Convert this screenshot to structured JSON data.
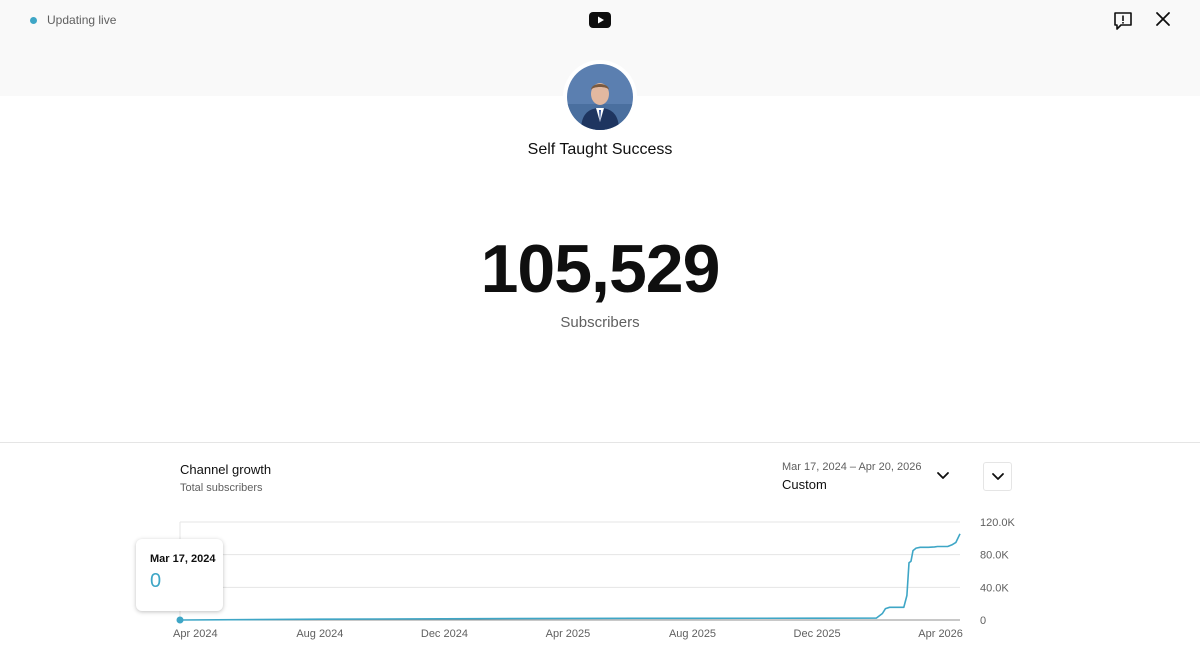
{
  "status": {
    "live_label": "Updating live"
  },
  "header": {
    "logo_icon": "youtube-icon",
    "feedback_icon": "feedback-icon",
    "close_icon": "close-icon"
  },
  "channel": {
    "name": "Self Taught Success",
    "avatar_icon": "channel-avatar"
  },
  "subscribers": {
    "count": "105,529",
    "label": "Subscribers"
  },
  "growth": {
    "title": "Channel growth",
    "subtitle": "Total subscribers",
    "date_range": "Mar 17, 2024 – Apr 20, 2026",
    "range_label": "Custom"
  },
  "tooltip": {
    "date": "Mar 17, 2024",
    "value": "0"
  },
  "colors": {
    "accent": "#3ea6c6",
    "band": "#f9f9f9",
    "grid": "#e5e5e5"
  },
  "chart_data": {
    "type": "line",
    "title": "Channel growth",
    "subtitle": "Total subscribers",
    "x_tick_labels": [
      "Apr 2024",
      "Aug 2024",
      "Dec 2024",
      "Apr 2025",
      "Aug 2025",
      "Dec 2025",
      "Apr 2026"
    ],
    "y_tick_labels": [
      "120.0K",
      "80.0K",
      "40.0K",
      "0"
    ],
    "y_ticks": [
      120000,
      80000,
      40000,
      0
    ],
    "ylim": [
      0,
      120000
    ],
    "xlim": [
      "2024-03-17",
      "2026-04-20"
    ],
    "grid": true,
    "series": [
      {
        "color": "#3ea6c6",
        "x": [
          "2024-03-17",
          "2024-08-01",
          "2024-12-01",
          "2025-04-01",
          "2025-08-01",
          "2025-12-01",
          "2026-01-28",
          "2026-02-03",
          "2026-02-06",
          "2026-02-10",
          "2026-02-24",
          "2026-02-27",
          "2026-03-01",
          "2026-03-03",
          "2026-03-05",
          "2026-03-08",
          "2026-03-12",
          "2026-03-20",
          "2026-03-26",
          "2026-03-29",
          "2026-04-02",
          "2026-04-08",
          "2026-04-12",
          "2026-04-16",
          "2026-04-20"
        ],
        "values": [
          0,
          1000,
          1500,
          2000,
          2100,
          2200,
          2300,
          8000,
          14000,
          15500,
          15500,
          30000,
          70000,
          72000,
          85000,
          88000,
          89000,
          89000,
          89500,
          90000,
          90000,
          90000,
          92000,
          95000,
          105529
        ]
      }
    ]
  }
}
